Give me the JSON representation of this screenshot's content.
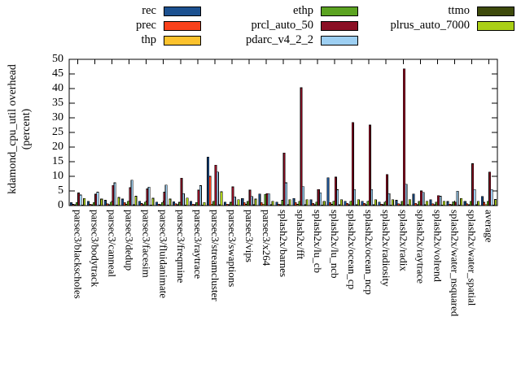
{
  "chart_data": {
    "type": "bar",
    "title": "",
    "ylabel_line1": "kdamond_cpu_util overhead",
    "ylabel_line2": "(percent)",
    "ylim": [
      0,
      50
    ],
    "ytick_step": 5,
    "grid": false,
    "legend_position": "top-center-3-columns",
    "bar_outline_color": "#000000",
    "categories": [
      "parsec3/blackscholes",
      "parsec3/bodytrack",
      "parsec3/canneal",
      "parsec3/dedup",
      "parsec3/facesim",
      "parsec3/fluidanimate",
      "parsec3/freqmine",
      "parsec3/raytrace",
      "parsec3/streamcluster",
      "parsec3/swaptions",
      "parsec3/vips",
      "parsec3/x264",
      "splash2x/barnes",
      "splash2x/fft",
      "splash2x/lu_cb",
      "splash2x/lu_ncb",
      "splash2x/ocean_cp",
      "splash2x/ocean_ncp",
      "splash2x/radiosity",
      "splash2x/radix",
      "splash2x/raytrace",
      "splash2x/volrend",
      "splash2x/water_nsquared",
      "splash2x/water_spatial",
      "average"
    ],
    "series": [
      {
        "name": "rec",
        "color": "#1c5190",
        "values": [
          1.0,
          1.5,
          1.8,
          2.2,
          1.5,
          1.2,
          1.3,
          1.5,
          16.6,
          1.2,
          2.4,
          4.0,
          1.2,
          2.4,
          2.0,
          9.5,
          1.5,
          1.5,
          1.2,
          1.8,
          4.0,
          2.0,
          1.4,
          1.5,
          3.1
        ]
      },
      {
        "name": "prec",
        "color": "#f9411b",
        "values": [
          0.4,
          0.5,
          0.6,
          1.0,
          0.7,
          0.5,
          0.6,
          0.5,
          10.0,
          0.5,
          1.0,
          1.0,
          0.5,
          1.0,
          0.8,
          1.0,
          0.8,
          0.8,
          0.5,
          0.6,
          0.8,
          0.6,
          0.5,
          0.6,
          1.1
        ]
      },
      {
        "name": "thp",
        "color": "#fcc22d",
        "values": [
          0.3,
          0.3,
          0.3,
          0.4,
          0.3,
          0.3,
          0.3,
          0.3,
          0.5,
          0.3,
          0.4,
          0.5,
          0.3,
          0.4,
          0.3,
          0.4,
          0.3,
          0.3,
          0.3,
          0.3,
          0.3,
          0.3,
          0.3,
          0.3,
          0.35
        ]
      },
      {
        "name": "ethp",
        "color": "#5ba321",
        "values": [
          1.0,
          1.0,
          1.2,
          1.5,
          1.2,
          1.0,
          1.1,
          1.0,
          1.5,
          1.1,
          1.5,
          3.8,
          1.8,
          1.5,
          1.2,
          1.5,
          1.5,
          1.5,
          1.2,
          1.5,
          1.5,
          1.2,
          1.3,
          1.5,
          1.5
        ]
      },
      {
        "name": "prcl_auto_50",
        "color": "#8b0f24",
        "values": [
          4.3,
          3.9,
          6.9,
          6.1,
          5.7,
          4.6,
          9.4,
          5.3,
          13.8,
          6.4,
          5.3,
          4.1,
          18.0,
          40.3,
          5.5,
          9.7,
          28.4,
          27.5,
          10.6,
          46.7,
          5.0,
          3.4,
          1.2,
          14.3,
          11.5
        ]
      },
      {
        "name": "pdarc_v4_2_2",
        "color": "#9dcff2",
        "values": [
          3.6,
          4.6,
          7.8,
          8.7,
          6.3,
          7.0,
          4.1,
          6.8,
          11.5,
          3.0,
          3.1,
          4.0,
          7.8,
          6.5,
          4.4,
          5.4,
          5.5,
          5.5,
          4.1,
          7.3,
          4.5,
          3.2,
          4.9,
          5.5,
          5.5
        ]
      },
      {
        "name": "ttmo",
        "color": "#3e4a0c",
        "values": [
          0.2,
          0.2,
          0.2,
          0.3,
          0.2,
          0.2,
          0.2,
          0.2,
          0.3,
          0.2,
          0.3,
          0.3,
          0.3,
          0.3,
          0.2,
          0.3,
          0.3,
          0.3,
          0.2,
          0.3,
          0.3,
          0.2,
          0.2,
          0.3,
          0.25
        ]
      },
      {
        "name": "plrus_auto_7000",
        "color": "#aacf16",
        "values": [
          2.4,
          2.2,
          2.8,
          3.2,
          2.5,
          2.2,
          2.6,
          1.0,
          4.7,
          2.0,
          2.2,
          1.5,
          2.0,
          2.0,
          1.5,
          2.0,
          2.0,
          2.0,
          2.0,
          2.0,
          1.5,
          1.5,
          2.4,
          1.5,
          2.1
        ]
      }
    ],
    "legend_column_order": [
      0,
      3,
      6,
      1,
      4,
      7,
      2,
      5
    ]
  }
}
